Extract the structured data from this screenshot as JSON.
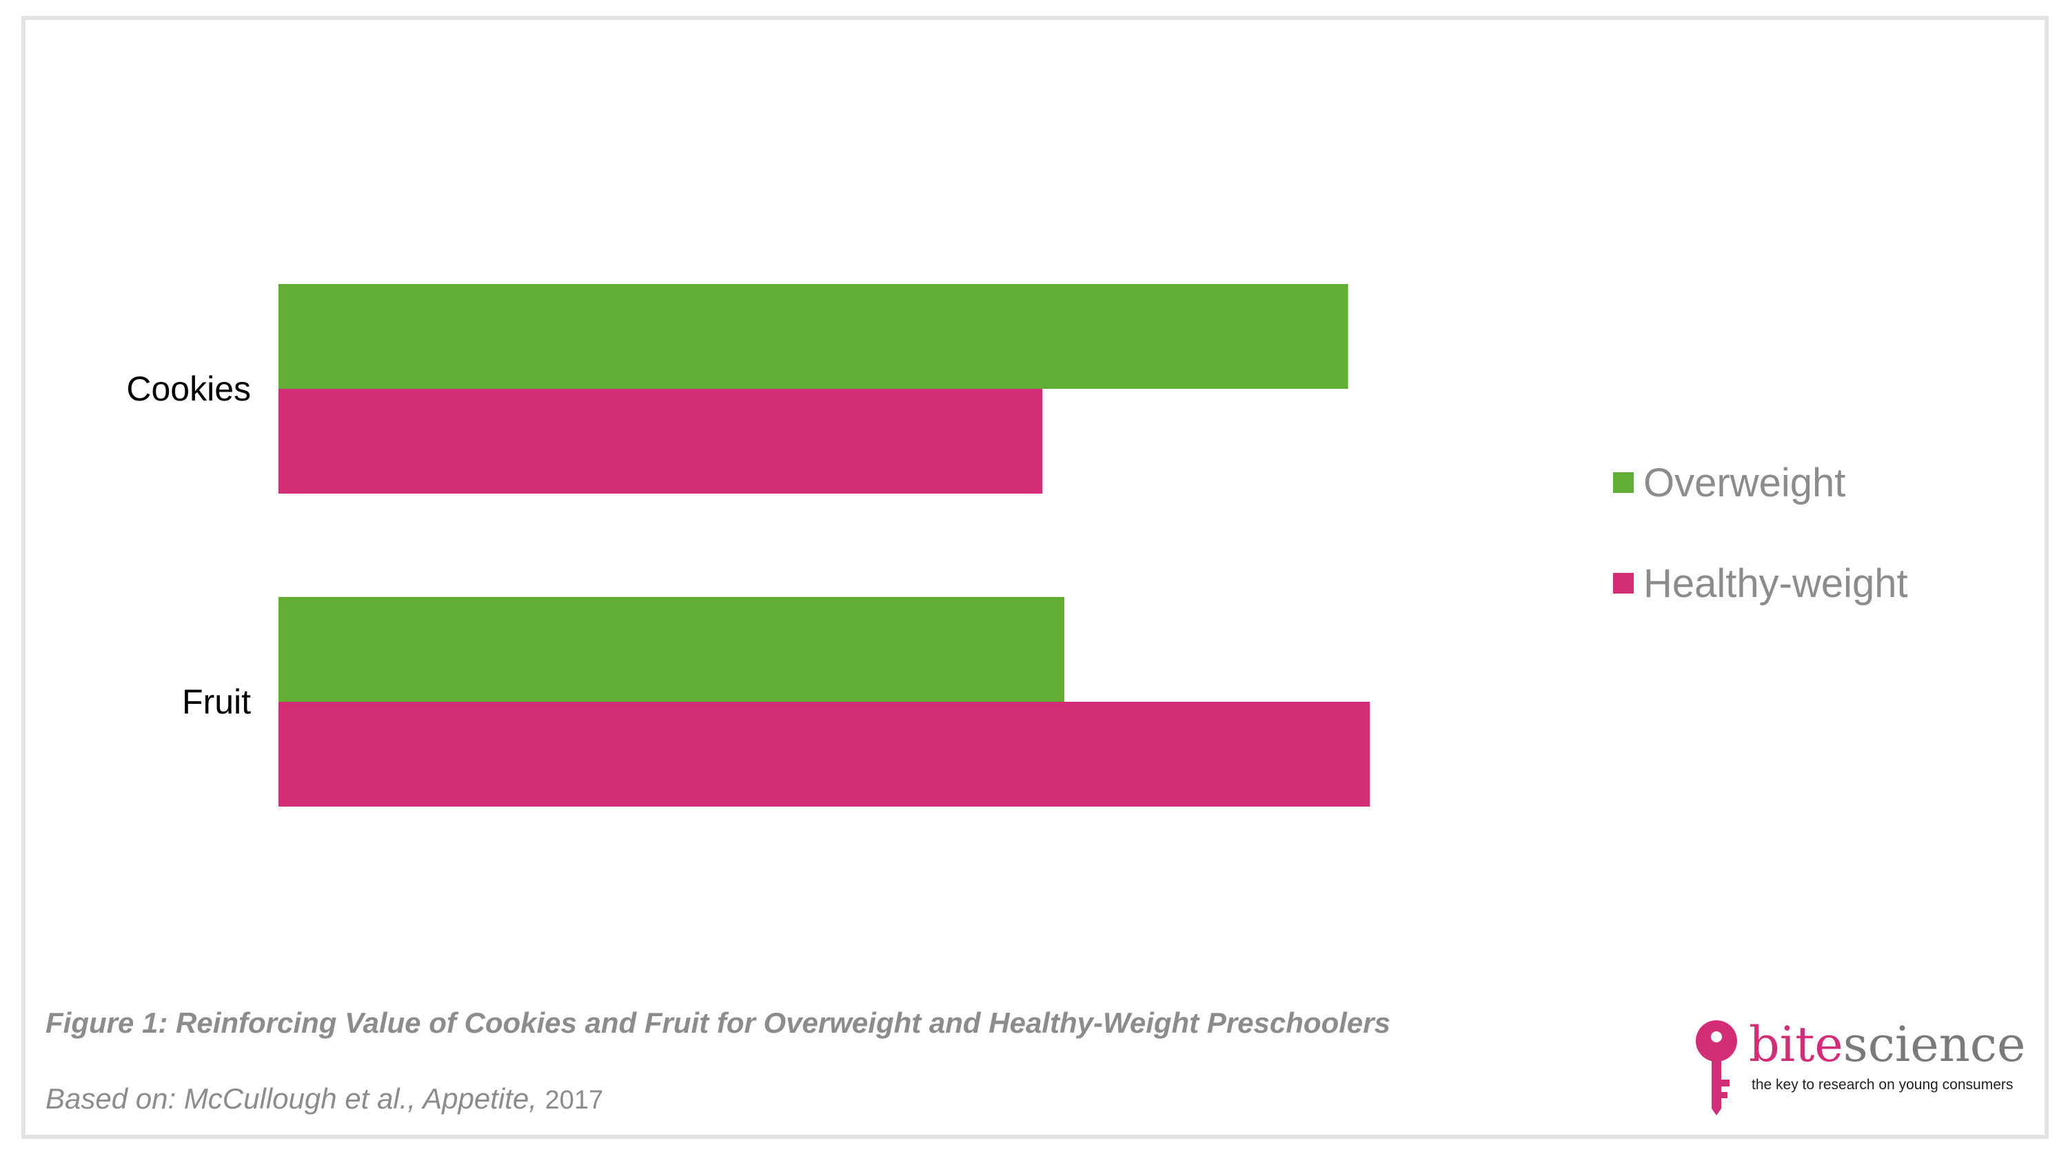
{
  "chart_data": {
    "type": "bar",
    "orientation": "horizontal",
    "categories": [
      "Cookies",
      "Fruit"
    ],
    "series": [
      {
        "name": "Overweight",
        "color": "#62ae34",
        "values": [
          0.98,
          0.72
        ]
      },
      {
        "name": "Healthy-weight",
        "color": "#d42d78",
        "values": [
          0.7,
          1.0
        ]
      }
    ],
    "xlim": [
      0,
      1.2
    ],
    "grid": false,
    "axes_visible": false,
    "legend_position": "right",
    "caption": "Figure 1: Reinforcing Value of Cookies and Fruit for Overweight and Healthy-Weight Preschoolers"
  },
  "source": {
    "prefix": "Based on: McCullough et al., Appetite,",
    "year": "2017"
  },
  "brand": {
    "name_part1": "bite",
    "name_part2": "science",
    "tagline": "the key to research on young consumers",
    "color_primary": "#d42d78",
    "color_secondary": "#7a7a7a"
  }
}
